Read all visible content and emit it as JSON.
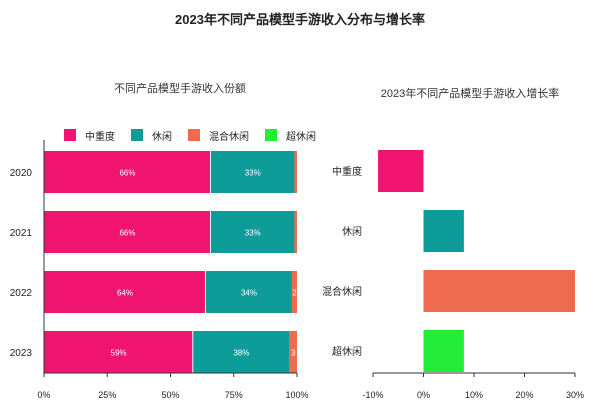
{
  "page_title": "2023年不同产品模型手游收入分布与增长率",
  "chart_data": [
    {
      "type": "bar",
      "orientation": "horizontal",
      "stacked": true,
      "title": "不同产品模型手游收入份额",
      "categories": [
        "2020",
        "2021",
        "2022",
        "2023"
      ],
      "series": [
        {
          "name": "中重度",
          "color": "#f0136f",
          "values": [
            66,
            66,
            64,
            59
          ],
          "labels": [
            "66%",
            "66%",
            "64%",
            "59%"
          ]
        },
        {
          "name": "休闲",
          "color": "#0e9c99",
          "values": [
            33,
            33,
            34,
            38
          ],
          "labels": [
            "33%",
            "33%",
            "34%",
            "38%"
          ]
        },
        {
          "name": "混合休闲",
          "color": "#ef6b50",
          "values": [
            1,
            1,
            2,
            3
          ],
          "labels": [
            "",
            "",
            "2",
            "3"
          ]
        },
        {
          "name": "超休闲",
          "color": "#22ee3a",
          "values": [
            0,
            0,
            0,
            0
          ],
          "labels": [
            "",
            "",
            "",
            ""
          ]
        }
      ],
      "xlim": [
        0,
        100
      ],
      "xticks": [
        "0%",
        "25%",
        "50%",
        "75%",
        "100%"
      ],
      "legend_position": "top-left",
      "grid": false
    },
    {
      "type": "bar",
      "orientation": "horizontal",
      "title": "2023年不同产品模型手游收入增长率",
      "categories": [
        "中重度",
        "休闲",
        "混合休闲",
        "超休闲"
      ],
      "values": [
        -9,
        8,
        30,
        8
      ],
      "colors": [
        "#f0136f",
        "#0e9c99",
        "#ef6b50",
        "#22ee3a"
      ],
      "xlim": [
        -10,
        30
      ],
      "xticks": [
        "-10%",
        "0%",
        "10%",
        "20%",
        "30%"
      ],
      "grid": false
    }
  ]
}
